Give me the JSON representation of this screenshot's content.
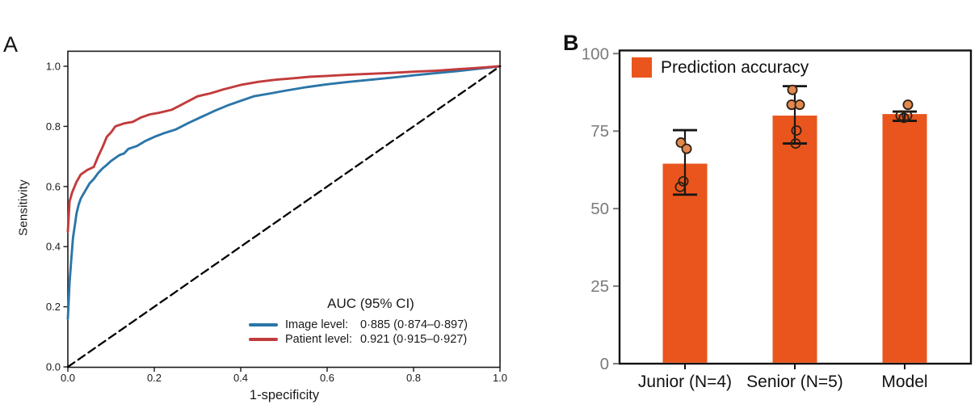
{
  "figure": {
    "panel_a_label": "A",
    "panel_b_label": "B",
    "background": "#ffffff"
  },
  "colors": {
    "image_level_blue": "#2b76a8",
    "patient_level_red": "#c23b3c",
    "bar_orange": "#e9551d",
    "point_fill": "#e1884f",
    "point_outline": "#2e2014",
    "axis_black": "#1a1a1a",
    "tick_gray": "#7b7b7b",
    "dashed_black": "#000000"
  },
  "chart_data": [
    {
      "panel": "A",
      "type": "line",
      "name": "ROC curves",
      "xlabel": "1-specificity",
      "ylabel": "Sensitivity",
      "xlim": [
        0,
        1.0
      ],
      "ylim": [
        0,
        1.05
      ],
      "grid": false,
      "xticks": {
        "values": [
          0,
          0.2,
          0.4,
          0.6,
          0.8,
          1.0
        ],
        "labels": [
          "0.0",
          "0.2",
          "0.4",
          "0.6",
          "0.8",
          "1.0"
        ]
      },
      "yticks": {
        "values": [
          0,
          0.2,
          0.4,
          0.6,
          0.8,
          1.0
        ],
        "labels": [
          "0.0",
          "0.2",
          "0.4",
          "0.6",
          "0.8",
          "1.0"
        ]
      },
      "legend": {
        "position": "lower right",
        "title": "AUC (95% CI)",
        "entries": [
          {
            "label": "Image level:",
            "value": "0·885 (0·874–0·897)",
            "color": "#2b76a8"
          },
          {
            "label": "Patient level:",
            "value": "0.921 (0·915–0·927)",
            "color": "#c23b3c"
          }
        ]
      },
      "series": [
        {
          "name": "Image level",
          "auc": "0.885",
          "ci": "0.874-0.897",
          "color": "#2b76a8",
          "style": "solid",
          "points": [
            [
              0,
              0.16
            ],
            [
              0.004,
              0.28
            ],
            [
              0.008,
              0.36
            ],
            [
              0.012,
              0.43
            ],
            [
              0.016,
              0.47
            ],
            [
              0.02,
              0.51
            ],
            [
              0.025,
              0.54
            ],
            [
              0.03,
              0.56
            ],
            [
              0.04,
              0.585
            ],
            [
              0.05,
              0.61
            ],
            [
              0.06,
              0.625
            ],
            [
              0.07,
              0.645
            ],
            [
              0.08,
              0.66
            ],
            [
              0.09,
              0.672
            ],
            [
              0.1,
              0.685
            ],
            [
              0.12,
              0.705
            ],
            [
              0.13,
              0.71
            ],
            [
              0.14,
              0.725
            ],
            [
              0.16,
              0.735
            ],
            [
              0.18,
              0.752
            ],
            [
              0.2,
              0.765
            ],
            [
              0.22,
              0.776
            ],
            [
              0.25,
              0.79
            ],
            [
              0.28,
              0.812
            ],
            [
              0.31,
              0.832
            ],
            [
              0.34,
              0.852
            ],
            [
              0.37,
              0.87
            ],
            [
              0.4,
              0.885
            ],
            [
              0.43,
              0.9
            ],
            [
              0.47,
              0.91
            ],
            [
              0.5,
              0.918
            ],
            [
              0.55,
              0.93
            ],
            [
              0.6,
              0.94
            ],
            [
              0.65,
              0.948
            ],
            [
              0.7,
              0.955
            ],
            [
              0.75,
              0.962
            ],
            [
              0.8,
              0.97
            ],
            [
              0.85,
              0.977
            ],
            [
              0.9,
              0.984
            ],
            [
              0.95,
              0.992
            ],
            [
              1,
              1
            ]
          ]
        },
        {
          "name": "Patient level",
          "auc": "0.921",
          "ci": "0.915-0.927",
          "color": "#c23b3c",
          "style": "solid",
          "points": [
            [
              0,
              0.45
            ],
            [
              0.004,
              0.55
            ],
            [
              0.01,
              0.58
            ],
            [
              0.02,
              0.615
            ],
            [
              0.03,
              0.64
            ],
            [
              0.045,
              0.655
            ],
            [
              0.06,
              0.665
            ],
            [
              0.07,
              0.7
            ],
            [
              0.08,
              0.73
            ],
            [
              0.09,
              0.765
            ],
            [
              0.1,
              0.78
            ],
            [
              0.11,
              0.8
            ],
            [
              0.13,
              0.81
            ],
            [
              0.15,
              0.815
            ],
            [
              0.17,
              0.83
            ],
            [
              0.19,
              0.84
            ],
            [
              0.21,
              0.845
            ],
            [
              0.24,
              0.855
            ],
            [
              0.26,
              0.87
            ],
            [
              0.28,
              0.885
            ],
            [
              0.3,
              0.9
            ],
            [
              0.33,
              0.91
            ],
            [
              0.36,
              0.923
            ],
            [
              0.4,
              0.938
            ],
            [
              0.44,
              0.948
            ],
            [
              0.48,
              0.955
            ],
            [
              0.52,
              0.96
            ],
            [
              0.56,
              0.965
            ],
            [
              0.6,
              0.968
            ],
            [
              0.65,
              0.972
            ],
            [
              0.7,
              0.975
            ],
            [
              0.75,
              0.978
            ],
            [
              0.8,
              0.982
            ],
            [
              0.85,
              0.985
            ],
            [
              0.9,
              0.99
            ],
            [
              0.95,
              0.995
            ],
            [
              1,
              1
            ]
          ]
        },
        {
          "name": "Chance",
          "color": "#000000",
          "style": "dashed",
          "points": [
            [
              0,
              0
            ],
            [
              1,
              1
            ]
          ]
        }
      ]
    },
    {
      "panel": "B",
      "type": "bar",
      "name": "Prediction accuracy comparison",
      "legend": {
        "label": "Prediction accuracy",
        "color": "#e9551d",
        "position": "upper left"
      },
      "categories": [
        "Junior (N=4)",
        "Senior (N=5)",
        "Model"
      ],
      "values": [
        64.5,
        80,
        80.5
      ],
      "error_low": [
        54.5,
        71,
        78.3
      ],
      "error_high": [
        75.3,
        89.5,
        81.3
      ],
      "scatter_points": [
        [
          {
            "dx": -5,
            "v": 71.3,
            "filled": true
          },
          {
            "dx": 2,
            "v": 69.3,
            "filled": true
          },
          {
            "dx": -2,
            "v": 58.8,
            "filled": false
          },
          {
            "dx": -6,
            "v": 57,
            "filled": false
          }
        ],
        [
          {
            "dx": -3,
            "v": 88.3,
            "filled": true
          },
          {
            "dx": -4,
            "v": 83.5,
            "filled": true
          },
          {
            "dx": 6,
            "v": 83.5,
            "filled": true
          },
          {
            "dx": 2,
            "v": 75.2,
            "filled": false
          },
          {
            "dx": 1,
            "v": 71,
            "filled": false
          }
        ],
        [
          {
            "dx": 4,
            "v": 83.5,
            "filled": true
          },
          {
            "dx": -5,
            "v": 80,
            "filled": false
          },
          {
            "dx": 3,
            "v": 80,
            "filled": false
          },
          {
            "dx": -1,
            "v": 79.3,
            "filled": false
          }
        ]
      ],
      "ylim": [
        0,
        101
      ],
      "grid": false,
      "yticks": {
        "values": [
          0,
          25,
          50,
          75,
          100
        ],
        "labels": [
          "0",
          "25",
          "50",
          "75",
          "100"
        ]
      }
    }
  ]
}
